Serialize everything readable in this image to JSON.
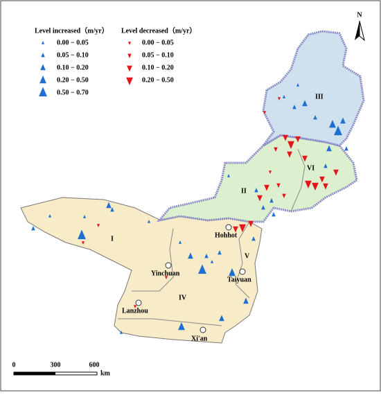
{
  "legend": {
    "increased": {
      "title": "Level increased（m/yr）",
      "classes": [
        "0.00 − 0.05",
        "0.05 − 0.10",
        "0.10 − 0.20",
        "0.20 − 0.50",
        "0.50 − 0.70"
      ]
    },
    "decreased": {
      "title": "Level decreased（m/yr）",
      "classes": [
        "0.00 − 0.05",
        "0.05 − 0.10",
        "0.10 − 0.20",
        "0.20 − 0.50"
      ]
    }
  },
  "regions": [
    "I",
    "II",
    "III",
    "IV",
    "V",
    "VI"
  ],
  "cities": [
    "Hohhot",
    "Yinchuan",
    "Taiyuan",
    "Lanzhou",
    "Xi'an"
  ],
  "scale_bar": {
    "ticks": [
      0,
      300,
      600
    ],
    "unit": "km"
  },
  "north": "N"
}
